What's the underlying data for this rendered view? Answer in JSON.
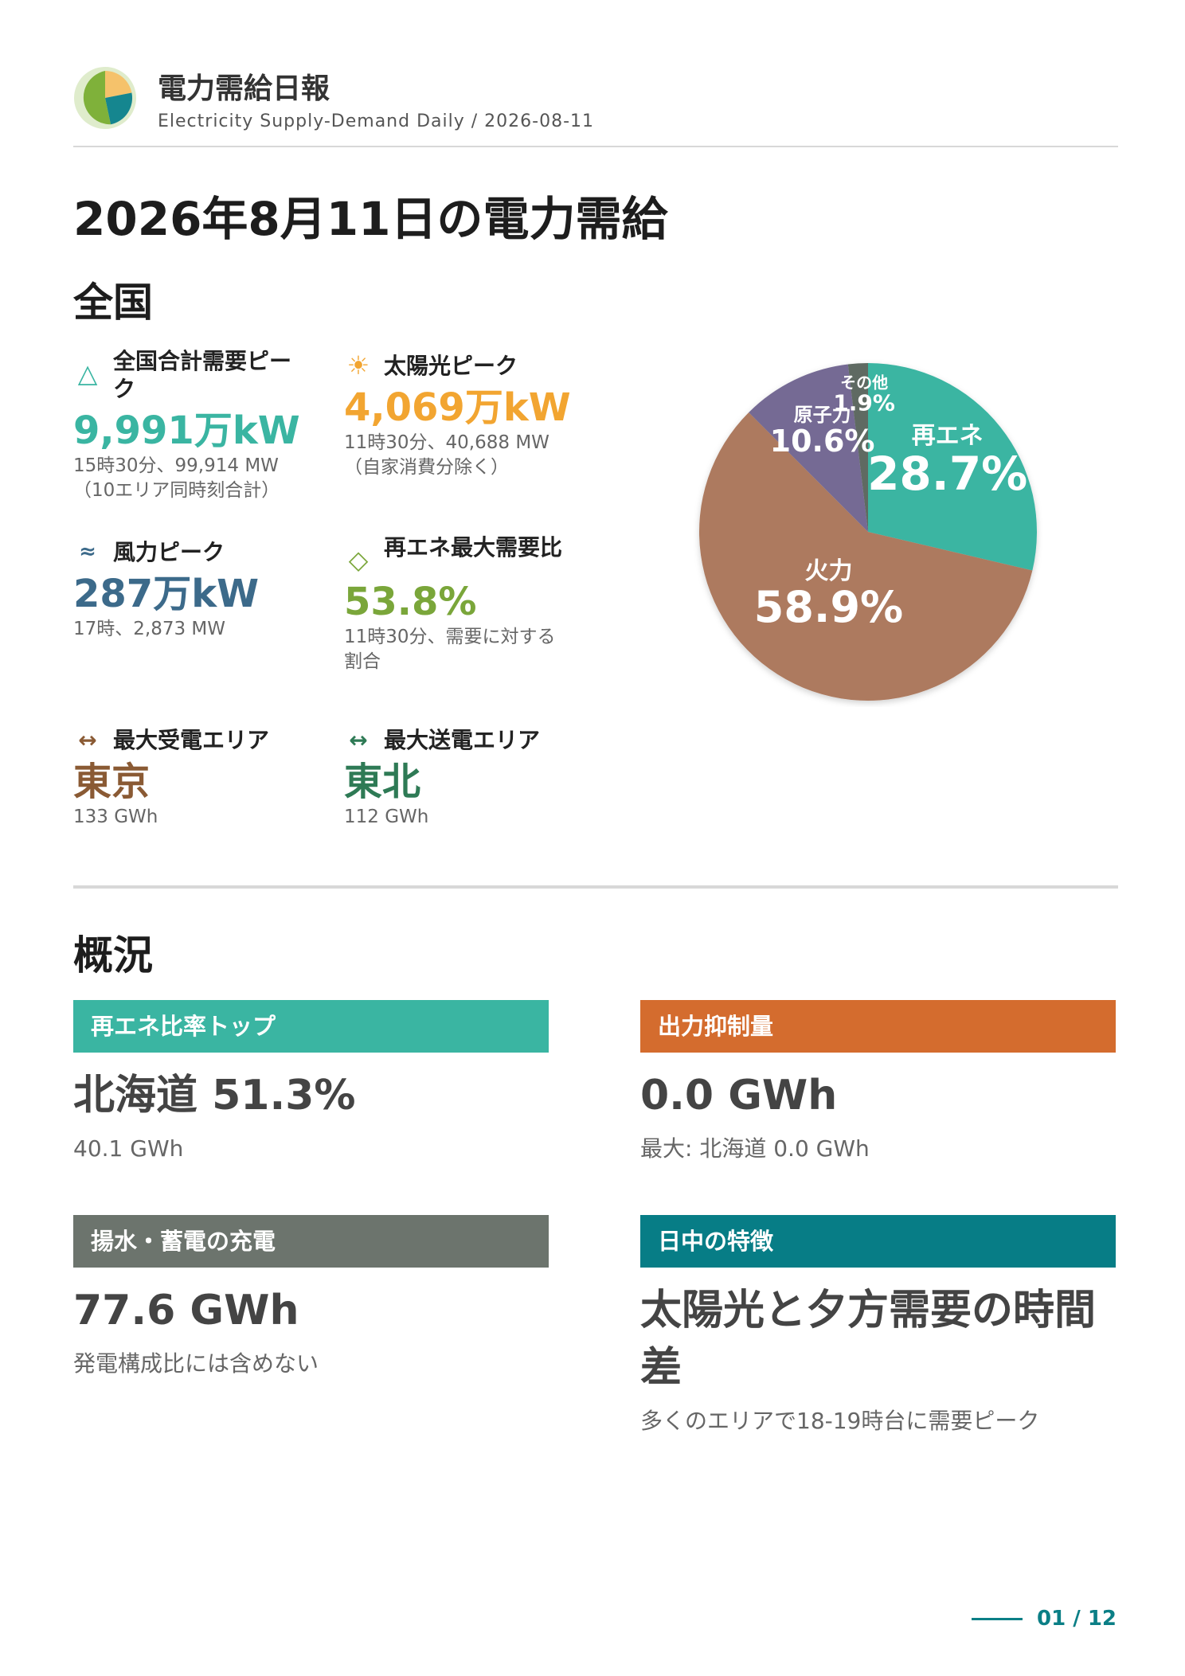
{
  "header": {
    "title": "電力需給日報",
    "subtitle": "Electricity Supply-Demand Daily / 2026-08-11"
  },
  "page_title": "2026年8月11日の電力需給",
  "national": {
    "heading": "全国",
    "stats": {
      "peak_demand": {
        "icon": "triangle-icon",
        "label": "全国合計需要ピーク",
        "value": "9,991万kW",
        "note1": "15時30分、99,914 MW",
        "note2": "（10エリア同時刻合計）",
        "color": "#3ab5a2"
      },
      "solar_peak": {
        "icon": "sun-icon",
        "label": "太陽光ピーク",
        "value": "4,069万kW",
        "note1": "11時30分、40,688 MW",
        "note2": "（自家消費分除く）",
        "color": "#f2a531"
      },
      "wind_peak": {
        "icon": "wind-icon",
        "label": "風力ピーク",
        "value": "287万kW",
        "note1": "17時、2,873 MW",
        "color": "#3c6a8a"
      },
      "renewable_ratio": {
        "icon": "diamond-icon",
        "label": "再エネ最大需要比",
        "value": "53.8%",
        "note1": "11時30分、需要に対する",
        "note2": "割合",
        "color": "#7aa63a"
      },
      "max_import": {
        "icon": "arrow-lr-icon",
        "label": "最大受電エリア",
        "value": "東京",
        "note1": "133 GWh",
        "color": "#8a5a34"
      },
      "max_export": {
        "icon": "arrow-lr-icon",
        "label": "最大送電エリア",
        "value": "東北",
        "note1": "112 GWh",
        "color": "#2e7a55"
      }
    }
  },
  "chart_data": {
    "type": "pie",
    "slices": [
      {
        "label": "再エネ",
        "value": 28.7,
        "value_label": "28.7%",
        "color": "#3ab5a2"
      },
      {
        "label": "火力",
        "value": 58.9,
        "value_label": "58.9%",
        "color": "#ad7a5e"
      },
      {
        "label": "原子力",
        "value": 10.6,
        "value_label": "10.6%",
        "color": "#756a94"
      },
      {
        "label": "その他",
        "value": 1.9,
        "value_label": "1.9%",
        "color": "#5f6b62"
      }
    ]
  },
  "overview": {
    "heading": "概況",
    "cards": {
      "renewable_top": {
        "label": "再エネ比率トップ",
        "value": "北海道 51.3%",
        "note": "40.1 GWh",
        "color": "#3ab5a2"
      },
      "curtailment": {
        "label": "出力抑制量",
        "value": "0.0 GWh",
        "note": "最大: 北海道 0.0 GWh",
        "color": "#d46c2e"
      },
      "pumped_storage": {
        "label": "揚水・蓄電の充電",
        "value": "77.6 GWh",
        "note": "発電構成比には含めない",
        "color": "#6c746d"
      },
      "daytime_feature": {
        "label": "日中の特徴",
        "value": "太陽光と夕方需要の時間差",
        "note": "多くのエリアで18-19時台に需要ピーク",
        "color": "#077d86"
      }
    }
  },
  "pager": {
    "text": "01 / 12"
  }
}
